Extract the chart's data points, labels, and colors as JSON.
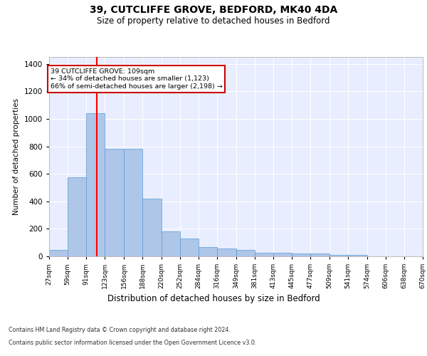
{
  "title": "39, CUTCLIFFE GROVE, BEDFORD, MK40 4DA",
  "subtitle": "Size of property relative to detached houses in Bedford",
  "xlabel": "Distribution of detached houses by size in Bedford",
  "ylabel": "Number of detached properties",
  "footer_line1": "Contains HM Land Registry data © Crown copyright and database right 2024.",
  "footer_line2": "Contains public sector information licensed under the Open Government Licence v3.0.",
  "annotation_title": "39 CUTCLIFFE GROVE: 109sqm",
  "annotation_line1": "← 34% of detached houses are smaller (1,123)",
  "annotation_line2": "66% of semi-detached houses are larger (2,198) →",
  "bar_color": "#aec6e8",
  "bar_edge_color": "#5b9bd5",
  "red_line_x": 109,
  "annotation_box_color": "#cc0000",
  "background_color": "#e8eeff",
  "bin_edges": [
    27,
    59,
    91,
    123,
    156,
    188,
    220,
    252,
    284,
    316,
    349,
    381,
    413,
    445,
    477,
    509,
    541,
    574,
    606,
    638,
    670
  ],
  "bar_heights": [
    45,
    575,
    1040,
    780,
    780,
    420,
    180,
    130,
    65,
    55,
    45,
    27,
    27,
    20,
    20,
    12,
    12,
    0,
    0,
    0
  ],
  "ylim": [
    0,
    1450
  ],
  "yticks": [
    0,
    200,
    400,
    600,
    800,
    1000,
    1200,
    1400
  ]
}
